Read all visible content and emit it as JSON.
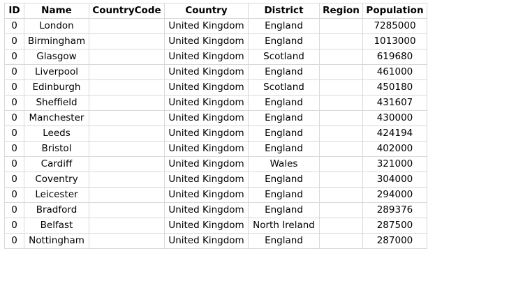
{
  "table": {
    "columns": [
      "ID",
      "Name",
      "CountryCode",
      "Country",
      "District",
      "Region",
      "Population"
    ],
    "rows": [
      [
        "0",
        "London",
        "",
        "United Kingdom",
        "England",
        "",
        "7285000"
      ],
      [
        "0",
        "Birmingham",
        "",
        "United Kingdom",
        "England",
        "",
        "1013000"
      ],
      [
        "0",
        "Glasgow",
        "",
        "United Kingdom",
        "Scotland",
        "",
        "619680"
      ],
      [
        "0",
        "Liverpool",
        "",
        "United Kingdom",
        "England",
        "",
        "461000"
      ],
      [
        "0",
        "Edinburgh",
        "",
        "United Kingdom",
        "Scotland",
        "",
        "450180"
      ],
      [
        "0",
        "Sheffield",
        "",
        "United Kingdom",
        "England",
        "",
        "431607"
      ],
      [
        "0",
        "Manchester",
        "",
        "United Kingdom",
        "England",
        "",
        "430000"
      ],
      [
        "0",
        "Leeds",
        "",
        "United Kingdom",
        "England",
        "",
        "424194"
      ],
      [
        "0",
        "Bristol",
        "",
        "United Kingdom",
        "England",
        "",
        "402000"
      ],
      [
        "0",
        "Cardiff",
        "",
        "United Kingdom",
        "Wales",
        "",
        "321000"
      ],
      [
        "0",
        "Coventry",
        "",
        "United Kingdom",
        "England",
        "",
        "304000"
      ],
      [
        "0",
        "Leicester",
        "",
        "United Kingdom",
        "England",
        "",
        "294000"
      ],
      [
        "0",
        "Bradford",
        "",
        "United Kingdom",
        "England",
        "",
        "289376"
      ],
      [
        "0",
        "Belfast",
        "",
        "United Kingdom",
        "North Ireland",
        "",
        "287500"
      ],
      [
        "0",
        "Nottingham",
        "",
        "United Kingdom",
        "England",
        "",
        "287000"
      ]
    ]
  }
}
